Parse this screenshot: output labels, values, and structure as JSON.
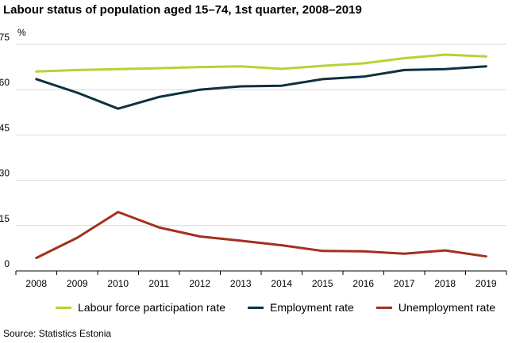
{
  "chart_data": {
    "type": "line",
    "title": "Labour status of population aged 15–74, 1st quarter, 2008–2019",
    "ylabel": "%",
    "ylim": [
      0,
      75
    ],
    "yticks": [
      "0",
      "15",
      "30",
      "45",
      "60",
      "75"
    ],
    "x": [
      "2008",
      "2009",
      "2010",
      "2011",
      "2012",
      "2013",
      "2014",
      "2015",
      "2016",
      "2017",
      "2018",
      "2019"
    ],
    "grid": true,
    "legend_position": "bottom",
    "series": [
      {
        "name": "Labour force participation rate",
        "color": "#b6d334",
        "values": [
          66.0,
          66.5,
          66.8,
          67.1,
          67.5,
          67.7,
          66.9,
          67.9,
          68.7,
          70.4,
          71.6,
          71.0
        ]
      },
      {
        "name": "Employment rate",
        "color": "#0e3042",
        "values": [
          63.5,
          59.0,
          53.7,
          57.6,
          60.0,
          61.1,
          61.3,
          63.5,
          64.3,
          66.5,
          66.8,
          67.7
        ]
      },
      {
        "name": "Unemployment rate",
        "color": "#a3301f",
        "values": [
          4.3,
          11.0,
          19.5,
          14.4,
          11.4,
          10.0,
          8.5,
          6.6,
          6.5,
          5.7,
          6.8,
          4.8
        ]
      }
    ]
  },
  "source": "Source: Statistics Estonia"
}
